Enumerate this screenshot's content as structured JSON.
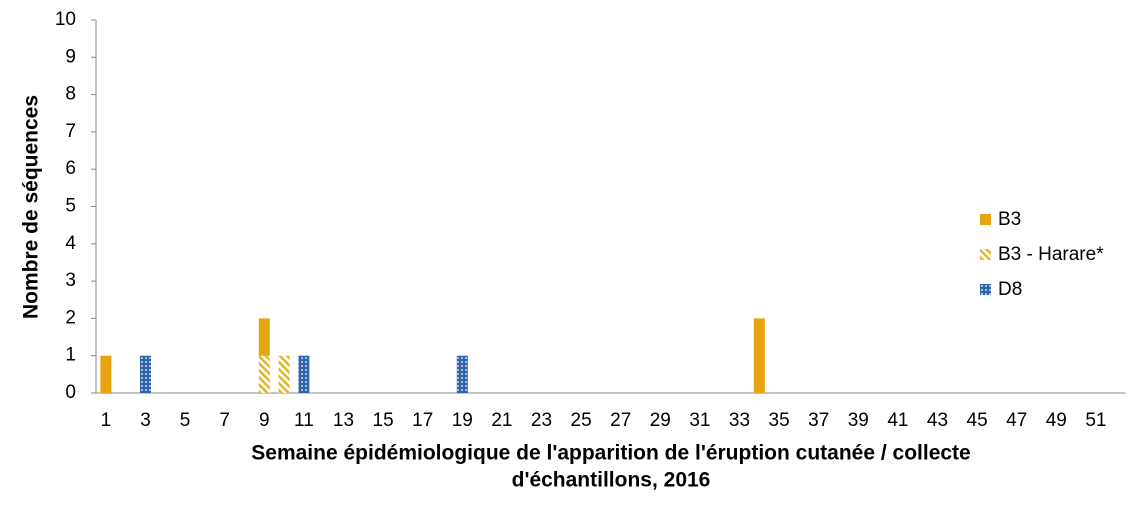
{
  "chart_data": {
    "type": "stacked_bar",
    "x_label": [
      "Semaine épidémiologique de l'apparition de l'éruption cutanée / collecte",
      "d'échantillons, 2016"
    ],
    "y_label": "Nombre de séquences",
    "categories": [
      "1",
      null,
      "3",
      null,
      "5",
      null,
      "7",
      null,
      "9",
      null,
      "11",
      null,
      "13",
      null,
      "15",
      null,
      "17",
      null,
      "19",
      null,
      "21",
      null,
      "23",
      null,
      "25",
      null,
      "27",
      null,
      "29",
      null,
      "31",
      null,
      "33",
      null,
      "35",
      null,
      "37",
      null,
      "39",
      null,
      "41",
      null,
      "43",
      null,
      "45",
      null,
      "47",
      null,
      "49",
      null,
      "51",
      null
    ],
    "series": [
      {
        "name": "B3",
        "color": "#e6a50e",
        "pattern": "solid",
        "values": [
          1,
          0,
          0,
          0,
          0,
          0,
          0,
          0,
          1,
          0,
          0,
          0,
          0,
          0,
          0,
          0,
          0,
          0,
          0,
          0,
          0,
          0,
          0,
          0,
          0,
          0,
          0,
          0,
          0,
          0,
          0,
          0,
          0,
          2,
          0,
          0,
          0,
          0,
          0,
          0,
          0,
          0,
          0,
          0,
          0,
          0,
          0,
          0,
          0,
          0,
          0,
          0
        ]
      },
      {
        "name": "B3 - Harare*",
        "color": "#e6b42a",
        "pattern": "hatch",
        "values": [
          0,
          0,
          0,
          0,
          0,
          0,
          0,
          0,
          1,
          1,
          0,
          0,
          0,
          0,
          0,
          0,
          0,
          0,
          0,
          0,
          0,
          0,
          0,
          0,
          0,
          0,
          0,
          0,
          0,
          0,
          0,
          0,
          0,
          0,
          0,
          0,
          0,
          0,
          0,
          0,
          0,
          0,
          0,
          0,
          0,
          0,
          0,
          0,
          0,
          0,
          0,
          0
        ]
      },
      {
        "name": "D8",
        "color": "#2f63a8",
        "pattern": "dots",
        "values": [
          0,
          0,
          1,
          0,
          0,
          0,
          0,
          0,
          0,
          0,
          1,
          0,
          0,
          0,
          0,
          0,
          0,
          0,
          1,
          0,
          0,
          0,
          0,
          0,
          0,
          0,
          0,
          0,
          0,
          0,
          0,
          0,
          0,
          0,
          0,
          0,
          0,
          0,
          0,
          0,
          0,
          0,
          0,
          0,
          0,
          0,
          0,
          0,
          0,
          0,
          0,
          0
        ]
      }
    ],
    "ylim": [
      0,
      10
    ],
    "yticks": [
      0,
      1,
      2,
      3,
      4,
      5,
      6,
      7,
      8,
      9,
      10
    ],
    "grid": false,
    "legend": "right"
  }
}
